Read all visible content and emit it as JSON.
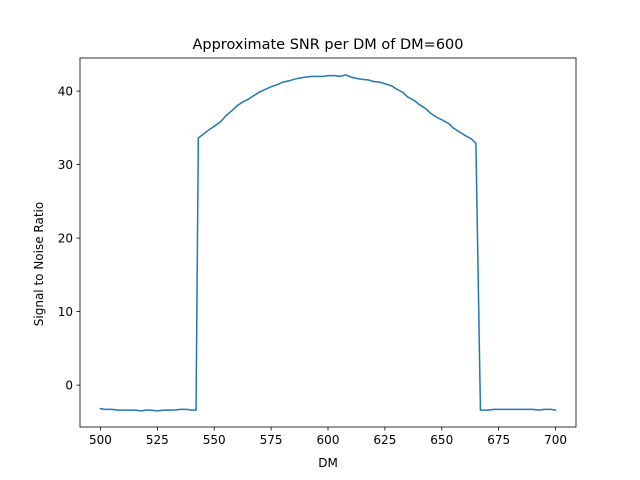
{
  "chart_data": {
    "type": "line",
    "title": "Approximate SNR per DM of DM=600",
    "xlabel": "DM",
    "ylabel": "Signal to Noise Ratio",
    "xlim": [
      491,
      709
    ],
    "ylim": [
      -5.7,
      44.5
    ],
    "xticks": [
      500,
      525,
      550,
      575,
      600,
      625,
      650,
      675,
      700
    ],
    "yticks": [
      0,
      10,
      20,
      30,
      40
    ],
    "grid": false,
    "legend": "none",
    "color": "#1f77b4",
    "series": [
      {
        "x": [
          500,
          502,
          505,
          508,
          510,
          512,
          515,
          518,
          520,
          522,
          525,
          528,
          530,
          532,
          535,
          538,
          540,
          542,
          543,
          545,
          548,
          550,
          553,
          555,
          558,
          560,
          563,
          565,
          568,
          570,
          573,
          575,
          578,
          580,
          583,
          585,
          588,
          590,
          593,
          595,
          598,
          600,
          603,
          605,
          608,
          610,
          613,
          615,
          618,
          620,
          623,
          625,
          628,
          630,
          633,
          635,
          638,
          640,
          643,
          645,
          648,
          650,
          653,
          655,
          658,
          660,
          663,
          665,
          667,
          668,
          670,
          673,
          675,
          678,
          680,
          683,
          685,
          688,
          690,
          693,
          695,
          698,
          700
        ],
        "y": [
          -3.2,
          -3.3,
          -3.3,
          -3.4,
          -3.4,
          -3.4,
          -3.4,
          -3.5,
          -3.4,
          -3.4,
          -3.5,
          -3.4,
          -3.4,
          -3.4,
          -3.3,
          -3.3,
          -3.4,
          -3.4,
          33.6,
          34.1,
          34.8,
          35.2,
          35.9,
          36.6,
          37.4,
          38.0,
          38.6,
          38.9,
          39.5,
          39.9,
          40.3,
          40.6,
          40.9,
          41.2,
          41.4,
          41.6,
          41.8,
          41.9,
          42.0,
          42.0,
          42.0,
          42.1,
          42.1,
          42.0,
          42.2,
          41.9,
          41.7,
          41.6,
          41.5,
          41.3,
          41.2,
          41.0,
          40.7,
          40.3,
          39.8,
          39.2,
          38.7,
          38.2,
          37.6,
          37.0,
          36.4,
          36.1,
          35.6,
          35.0,
          34.4,
          34.0,
          33.5,
          32.9,
          -3.4,
          -3.4,
          -3.4,
          -3.3,
          -3.3,
          -3.3,
          -3.3,
          -3.3,
          -3.3,
          -3.3,
          -3.3,
          -3.4,
          -3.3,
          -3.3,
          -3.4
        ]
      }
    ]
  }
}
